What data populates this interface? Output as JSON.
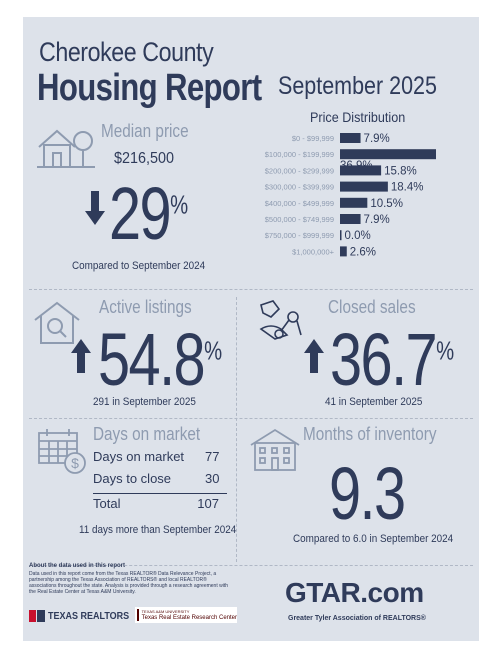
{
  "header": {
    "county": "Cherokee County",
    "title": "Housing Report",
    "period": "September 2025"
  },
  "median_price": {
    "title": "Median price",
    "value": "$216,500",
    "direction": "down",
    "change": "29",
    "unit": "%",
    "comparison": "Compared to September 2024"
  },
  "chart_data": {
    "type": "bar",
    "title": "Price Distribution",
    "orientation": "horizontal",
    "categories": [
      "$0 - $99,999",
      "$100,000 - $199,999",
      "$200,000 - $299,999",
      "$300,000 - $399,999",
      "$400,000 - $499,999",
      "$500,000 - $749,999",
      "$750,000 - $999,999",
      "$1,000,000+"
    ],
    "values": [
      7.9,
      36.9,
      15.8,
      18.4,
      10.5,
      7.9,
      0.0,
      2.6
    ],
    "value_labels": [
      "7.9%",
      "36.9%",
      "15.8%",
      "18.4%",
      "10.5%",
      "7.9%",
      "0.0%",
      "2.6%"
    ],
    "xlim": [
      0,
      36.9
    ],
    "color": "#2f3b5a"
  },
  "active_listings": {
    "title": "Active listings",
    "direction": "up",
    "change": "54.8",
    "unit": "%",
    "caption": "291 in September 2025"
  },
  "closed_sales": {
    "title": "Closed sales",
    "direction": "up",
    "change": "36.7",
    "unit": "%",
    "caption": "41 in September 2025"
  },
  "days_on_market": {
    "title": "Days on market",
    "rows": [
      {
        "label": "Days on market",
        "value": "77"
      },
      {
        "label": "Days to close",
        "value": "30"
      }
    ],
    "total_label": "Total",
    "total_value": "107",
    "caption": "11 days more than September 2024"
  },
  "months_inventory": {
    "title": "Months of inventory",
    "value": "9.3",
    "caption": "Compared to 6.0 in September 2024"
  },
  "footer": {
    "about_title": "About the data used in this report",
    "about_text": "Data used in this report come from the Texas REALTOR® Data Relevance Project, a partnership among the Texas Association of REALTORS® and local REALTOR® associations throughout the state. Analysis is provided through a research agreement with the Real Estate Center at Texas A&M University.",
    "texas_realtors": "TEXAS REALTORS",
    "tamu_small": "TEXAS A&M UNIVERSITY",
    "research_center": "Texas Real Estate Research Center",
    "gtar_logo": "GTAR.com",
    "gtar_tagline": "Greater Tyler Association of REALTORS®"
  },
  "colors": {
    "navy": "#2f3b5a",
    "gray": "#8e9bb0",
    "background": "#dde2ea",
    "tamu_maroon": "#500000",
    "texas_red": "#c8102e"
  }
}
